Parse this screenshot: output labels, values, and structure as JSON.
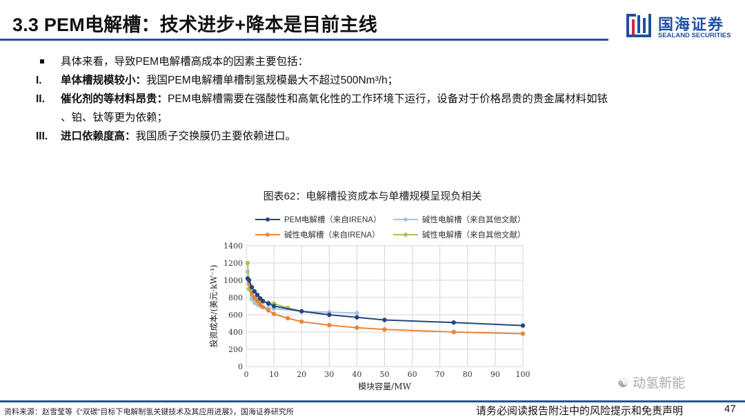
{
  "header": {
    "title": "3.3 PEM电解槽：技术进步+降本是目前主线",
    "logo_cn": "国海证券",
    "logo_en": "SEALAND SECURITIES"
  },
  "body": {
    "intro": "具体来看，导致PEM电解槽高成本的因素主要包括：",
    "items": [
      {
        "marker": "I.",
        "bold": "单体槽规模较小：",
        "text": "我国PEM电解槽单槽制氢规模最大不超过500Nm³/h；",
        "cont": ""
      },
      {
        "marker": "II.",
        "bold": "催化剂的等材料昂贵：",
        "text": "PEM电解槽需要在强酸性和高氧化性的工作环境下运行，设备对于价格昂贵的贵金属材料如铱",
        "cont": "、铂、钛等更为依赖；"
      },
      {
        "marker": "III.",
        "bold": "进口依赖度高：",
        "text": "我国质子交换膜仍主要依赖进口。",
        "cont": ""
      }
    ]
  },
  "figure": {
    "caption": "图表62：电解槽投资成本与单槽规模呈现负相关"
  },
  "chart_data": {
    "type": "line",
    "title": "",
    "xlabel": "模块容量/MW",
    "ylabel": "投资成本/(美元·kW⁻¹)",
    "xlim": [
      0,
      100
    ],
    "ylim": [
      0,
      1400
    ],
    "xticks": [
      0,
      10,
      20,
      30,
      40,
      50,
      60,
      70,
      80,
      90,
      100
    ],
    "yticks": [
      0,
      200,
      400,
      600,
      800,
      1000,
      1200,
      1400
    ],
    "grid": true,
    "legend_position": "top",
    "series": [
      {
        "name": "PEM电解槽（来自IRENA）",
        "color": "#24477f",
        "x": [
          0.5,
          1,
          2,
          3,
          4,
          5,
          6,
          8,
          10,
          20,
          30,
          40,
          50,
          75,
          100
        ],
        "y": [
          1020,
          1000,
          920,
          870,
          830,
          790,
          760,
          730,
          700,
          640,
          600,
          570,
          540,
          510,
          475
        ]
      },
      {
        "name": "碱性电解槽（来自其他文献）",
        "color": "#a9c4e0",
        "x": [
          0.5,
          1,
          2,
          3,
          4,
          5,
          6,
          8,
          10,
          20,
          30,
          40
        ],
        "y": [
          1100,
          900,
          780,
          740,
          720,
          700,
          690,
          680,
          670,
          640,
          630,
          620
        ]
      },
      {
        "name": "碱性电解槽（来自IRENA）",
        "color": "#e8853a",
        "x": [
          0.5,
          1,
          2,
          3,
          4,
          5,
          6,
          8,
          10,
          15,
          20,
          30,
          40,
          50,
          75,
          100
        ],
        "y": [
          1020,
          960,
          860,
          800,
          760,
          720,
          690,
          650,
          610,
          560,
          520,
          480,
          450,
          430,
          400,
          380
        ]
      },
      {
        "name": "碱性电解槽（来自其他文献）",
        "color": "#a9c15a",
        "x": [
          0.5,
          1,
          2,
          3,
          4,
          5,
          6,
          8,
          10,
          15,
          20,
          30
        ],
        "y": [
          1200,
          900,
          830,
          790,
          770,
          760,
          750,
          740,
          730,
          680,
          640,
          600
        ]
      }
    ]
  },
  "footer": {
    "source": "资料来源：赵雪莹等《“双碳”目标下电解制氢关键技术及其应用进展》，国海证券研究所",
    "disclaimer": "请务必阅读报告附注中的风险提示和免责声明",
    "page": "47",
    "watermark": "动氢新能"
  }
}
